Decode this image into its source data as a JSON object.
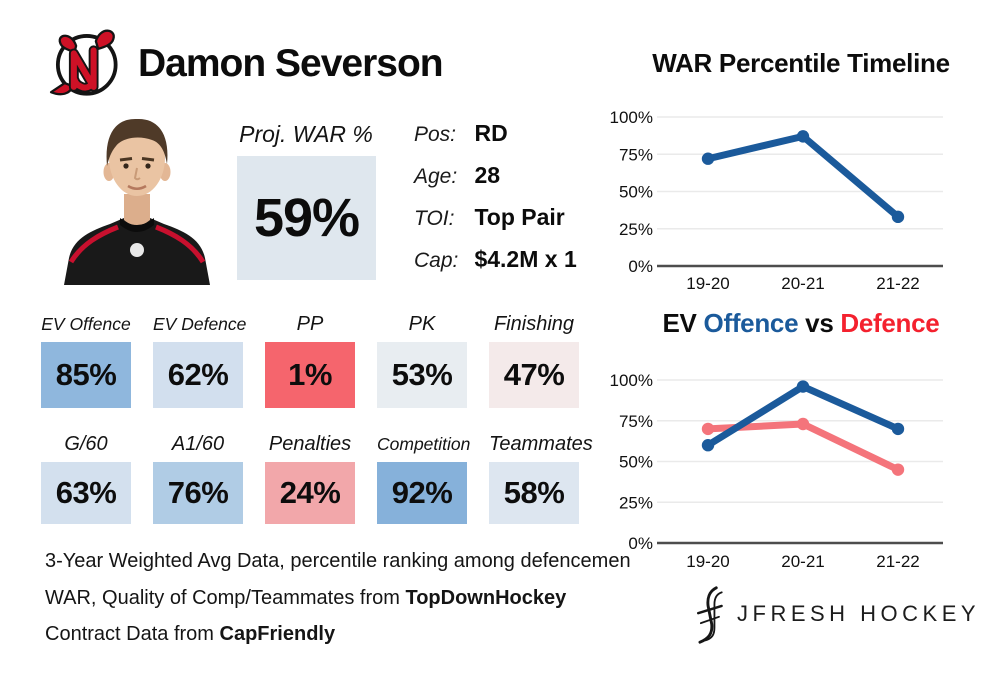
{
  "header": {
    "player_name": "Damon Severson",
    "team_logo_icon": "new-jersey-devils-logo"
  },
  "proj_war": {
    "label": "Proj. WAR %",
    "value": "59%",
    "box_color": "#dfe7ee"
  },
  "bio": [
    {
      "label": "Pos:",
      "value": "RD"
    },
    {
      "label": "Age:",
      "value": "28"
    },
    {
      "label": "TOI:",
      "value": "Top Pair"
    },
    {
      "label": "Cap:",
      "value": "$4.2M x 1"
    }
  ],
  "stat_rows": [
    [
      {
        "label": "EV Offence",
        "value": "85%",
        "color": "#8fb7dd"
      },
      {
        "label": "EV Defence",
        "value": "62%",
        "color": "#d2dfee"
      },
      {
        "label": "PP",
        "value": "1%",
        "color": "#f5656d"
      },
      {
        "label": "PK",
        "value": "53%",
        "color": "#e8edf1"
      },
      {
        "label": "Finishing",
        "value": "47%",
        "color": "#f4eaea"
      }
    ],
    [
      {
        "label": "G/60",
        "value": "63%",
        "color": "#d3e0ee"
      },
      {
        "label": "A1/60",
        "value": "76%",
        "color": "#b0cce5"
      },
      {
        "label": "Penalties",
        "value": "24%",
        "color": "#f2a7aa"
      },
      {
        "label": "Competition",
        "value": "92%",
        "color": "#86b1da"
      },
      {
        "label": "Teammates",
        "value": "58%",
        "color": "#dde6f0"
      }
    ]
  ],
  "footnotes": {
    "line1": "3-Year Weighted Avg Data, percentile ranking among defencemen",
    "line2_prefix": "WAR, Quality of Comp/Teammates from ",
    "line2_bold": "TopDownHockey",
    "line3_prefix": "Contract Data from ",
    "line3_bold": "CapFriendly"
  },
  "brand": {
    "logo_icon": "jfresh-hockey-logo",
    "name": "JFRESH HOCKEY"
  },
  "chart_data": [
    {
      "type": "line",
      "title": "WAR Percentile Timeline",
      "categories": [
        "19-20",
        "20-21",
        "21-22"
      ],
      "series": [
        {
          "name": "WAR Percentile",
          "color": "#1b5a9b",
          "values": [
            72,
            87,
            33
          ]
        }
      ],
      "ylim": [
        0,
        100
      ],
      "yticks": [
        "0%",
        "25%",
        "50%",
        "75%",
        "100%"
      ],
      "grid": true,
      "legend": "none"
    },
    {
      "type": "line",
      "title": "EV Offence vs Defence",
      "title_parts": [
        {
          "text": "EV ",
          "color": "#0c0c0c"
        },
        {
          "text": "Offence",
          "color": "#1b5a9b"
        },
        {
          "text": " vs ",
          "color": "#0c0c0c"
        },
        {
          "text": "Defence",
          "color": "#f4212e"
        }
      ],
      "categories": [
        "19-20",
        "20-21",
        "21-22"
      ],
      "series": [
        {
          "name": "EV Defence",
          "color": "#f4747b",
          "values": [
            70,
            73,
            45
          ]
        },
        {
          "name": "EV Offence",
          "color": "#1b5a9b",
          "values": [
            60,
            96,
            70
          ]
        }
      ],
      "ylim": [
        0,
        100
      ],
      "yticks": [
        "0%",
        "25%",
        "50%",
        "75%",
        "100%"
      ],
      "grid": true,
      "legend": "none"
    }
  ]
}
